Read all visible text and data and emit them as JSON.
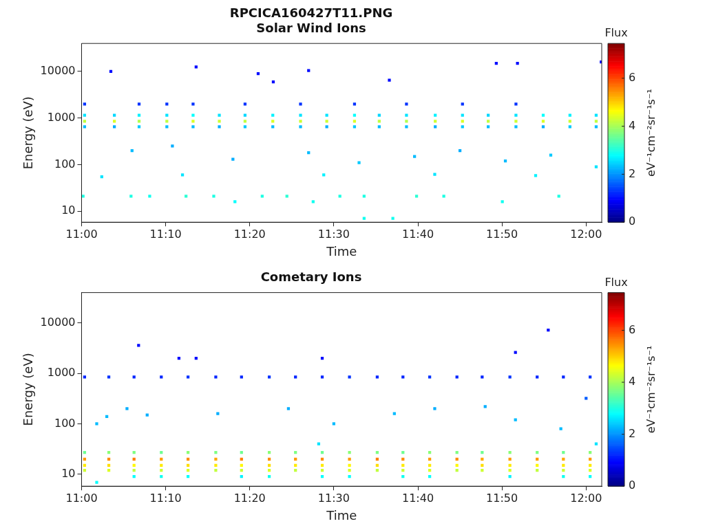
{
  "chart_data": [
    {
      "type": "scatter",
      "title": "RPCICA160427T11.PNG",
      "subtitle": "Solar Wind Ions",
      "xlabel": "Time",
      "ylabel": "Energy (eV)",
      "clabel": "eV⁻¹cm⁻²sr⁻¹s⁻¹",
      "legend_title": "Flux",
      "log": "y",
      "marker": "square",
      "grid": false,
      "legend": false,
      "xlim": [
        11,
        12.031
      ],
      "xticks": [
        {
          "value": 11,
          "label": "11:00"
        },
        {
          "value": 11.1667,
          "label": "11:10"
        },
        {
          "value": 11.3333,
          "label": "11:20"
        },
        {
          "value": 11.5,
          "label": "11:30"
        },
        {
          "value": 11.6667,
          "label": "11:40"
        },
        {
          "value": 11.8333,
          "label": "11:50"
        },
        {
          "value": 12,
          "label": "12:00"
        }
      ],
      "ylim": [
        5.8,
        40000
      ],
      "yticks": [
        10,
        100,
        1000,
        10000
      ],
      "clim": [
        0,
        7.45
      ],
      "cticks": [
        0,
        2,
        4,
        6
      ],
      "x": [
        11.006,
        11.065,
        11.114,
        11.169,
        11.221,
        11.273,
        11.324,
        11.379,
        11.434,
        11.486,
        11.541,
        11.59,
        11.644,
        11.701,
        11.755,
        11.806,
        11.861,
        11.915,
        11.968,
        12.02,
        11.006,
        11.065,
        11.114,
        11.169,
        11.221,
        11.273,
        11.324,
        11.379,
        11.434,
        11.486,
        11.541,
        11.59,
        11.644,
        11.701,
        11.755,
        11.806,
        11.861,
        11.915,
        11.968,
        12.02,
        11.006,
        11.065,
        11.114,
        11.169,
        11.221,
        11.273,
        11.324,
        11.379,
        11.434,
        11.486,
        11.541,
        11.59,
        11.644,
        11.701,
        11.755,
        11.806,
        11.861,
        11.915,
        11.968,
        12.02,
        11.006,
        11.114,
        11.169,
        11.221,
        11.324,
        11.434,
        11.541,
        11.644,
        11.755,
        11.861,
        11.003,
        11.098,
        11.135,
        11.207,
        11.262,
        11.304,
        11.358,
        11.407,
        11.459,
        11.512,
        11.56,
        11.664,
        11.718,
        11.834,
        11.946,
        11.058,
        11.227,
        11.45,
        11.822,
        11.864,
        12.03,
        11.35,
        11.61,
        11.38,
        11.1,
        11.18,
        11.3,
        11.45,
        11.55,
        11.66,
        11.75,
        11.84,
        11.93,
        12.02,
        11.04,
        11.2,
        11.48,
        11.7,
        11.9,
        11.56,
        11.617
      ],
      "values": [
        850,
        850,
        850,
        850,
        850,
        850,
        850,
        850,
        850,
        850,
        850,
        850,
        850,
        850,
        850,
        850,
        850,
        850,
        850,
        850,
        1150,
        1150,
        1150,
        1150,
        1150,
        1150,
        1150,
        1150,
        1150,
        1150,
        1150,
        1150,
        1150,
        1150,
        1150,
        1150,
        1150,
        1150,
        1150,
        1150,
        650,
        650,
        650,
        650,
        650,
        650,
        650,
        650,
        650,
        650,
        650,
        650,
        650,
        650,
        650,
        650,
        650,
        650,
        650,
        650,
        2000,
        2000,
        2000,
        2000,
        2000,
        2000,
        2000,
        2000,
        2000,
        2000,
        21,
        21,
        21,
        21,
        21,
        16,
        21,
        21,
        16,
        21,
        21,
        21,
        21,
        16,
        21,
        10000,
        12500,
        10500,
        15000,
        15000,
        16000,
        9000,
        6500,
        6000,
        200,
        250,
        130,
        180,
        110,
        150,
        200,
        120,
        160,
        90,
        55,
        60,
        60,
        62,
        58,
        7,
        7
      ],
      "cvalues": [
        4.2,
        4.4,
        4.1,
        4.2,
        4.4,
        4.3,
        4.2,
        4.4,
        4.3,
        4.3,
        4.4,
        4.2,
        4.1,
        4.3,
        4.4,
        4.2,
        4.3,
        4.4,
        4.3,
        4.2,
        2.6,
        2.5,
        2.7,
        2.6,
        2.8,
        2.6,
        2.5,
        2.7,
        2.6,
        2.6,
        2.8,
        2.5,
        2.6,
        2.7,
        2.6,
        2.5,
        2.6,
        2.8,
        2.7,
        2.6,
        2.3,
        2.2,
        2.4,
        2.3,
        2.3,
        2.2,
        2.4,
        2.3,
        2.3,
        2.2,
        2.4,
        2.3,
        2.3,
        2.2,
        2.4,
        2.3,
        2.3,
        2.2,
        2.4,
        2.3,
        1.3,
        1.3,
        1.3,
        1.3,
        1.3,
        1.3,
        1.3,
        1.3,
        1.3,
        1.3,
        3.0,
        3.0,
        2.9,
        3.1,
        3.0,
        2.8,
        3.0,
        3.1,
        2.9,
        3.0,
        3.0,
        3.1,
        3.0,
        2.9,
        3.0,
        1.0,
        1.0,
        1.0,
        1.0,
        1.0,
        1.0,
        1.0,
        1.0,
        1.0,
        2.3,
        2.2,
        2.2,
        2.3,
        2.4,
        2.3,
        2.2,
        2.3,
        2.4,
        2.6,
        2.6,
        2.6,
        2.7,
        2.6,
        2.7,
        2.9,
        2.9
      ]
    },
    {
      "type": "scatter",
      "title": "Cometary Ions",
      "xlabel": "Time",
      "ylabel": "Energy (eV)",
      "clabel": "eV⁻¹cm⁻²sr⁻¹s⁻¹",
      "legend_title": "Flux",
      "log": "y",
      "marker": "square",
      "grid": false,
      "legend": false,
      "xlim": [
        11,
        12.031
      ],
      "xticks": [
        {
          "value": 11,
          "label": "11:00"
        },
        {
          "value": 11.1667,
          "label": "11:10"
        },
        {
          "value": 11.3333,
          "label": "11:20"
        },
        {
          "value": 11.5,
          "label": "11:30"
        },
        {
          "value": 11.6667,
          "label": "11:40"
        },
        {
          "value": 11.8333,
          "label": "11:50"
        },
        {
          "value": 12,
          "label": "12:00"
        }
      ],
      "ylim": [
        5.8,
        40000
      ],
      "yticks": [
        10,
        100,
        1000,
        10000
      ],
      "clim": [
        0,
        7.45
      ],
      "cticks": [
        0,
        2,
        4,
        6
      ],
      "x": [
        11.006,
        11.054,
        11.104,
        11.158,
        11.211,
        11.266,
        11.317,
        11.372,
        11.424,
        11.477,
        11.531,
        11.586,
        11.637,
        11.69,
        11.744,
        11.794,
        11.849,
        11.903,
        11.955,
        12.008,
        11.006,
        11.054,
        11.104,
        11.158,
        11.211,
        11.266,
        11.317,
        11.372,
        11.424,
        11.477,
        11.531,
        11.586,
        11.637,
        11.69,
        11.744,
        11.794,
        11.849,
        11.903,
        11.955,
        12.008,
        11.006,
        11.054,
        11.104,
        11.158,
        11.211,
        11.266,
        11.317,
        11.372,
        11.424,
        11.477,
        11.531,
        11.586,
        11.637,
        11.69,
        11.744,
        11.794,
        11.849,
        11.903,
        11.955,
        12.008,
        11.006,
        11.054,
        11.104,
        11.158,
        11.211,
        11.266,
        11.317,
        11.372,
        11.424,
        11.477,
        11.531,
        11.586,
        11.637,
        11.69,
        11.744,
        11.794,
        11.849,
        11.903,
        11.955,
        12.008,
        11.104,
        11.158,
        11.211,
        11.317,
        11.372,
        11.477,
        11.531,
        11.637,
        11.69,
        11.849,
        11.955,
        12.008,
        11.006,
        11.054,
        11.104,
        11.158,
        11.211,
        11.266,
        11.317,
        11.372,
        11.424,
        11.477,
        11.531,
        11.586,
        11.637,
        11.69,
        11.744,
        11.794,
        11.849,
        11.903,
        11.955,
        12.008,
        11.113,
        11.193,
        11.227,
        11.477,
        11.86,
        11.925,
        12.0,
        11.03,
        11.05,
        11.09,
        11.13,
        11.27,
        11.41,
        11.5,
        11.62,
        11.7,
        11.8,
        11.86,
        11.95,
        12.02,
        11.47,
        11.03
      ],
      "values": [
        20,
        20,
        20,
        20,
        20,
        20,
        20,
        20,
        20,
        20,
        20,
        20,
        20,
        20,
        20,
        20,
        20,
        20,
        20,
        20,
        15,
        15,
        15,
        15,
        15,
        15,
        15,
        15,
        15,
        15,
        15,
        15,
        15,
        15,
        15,
        15,
        15,
        15,
        15,
        15,
        27,
        27,
        27,
        27,
        27,
        27,
        27,
        27,
        27,
        27,
        27,
        27,
        27,
        27,
        27,
        27,
        27,
        27,
        27,
        27,
        12,
        12,
        12,
        12,
        12,
        12,
        12,
        12,
        12,
        12,
        12,
        12,
        12,
        12,
        12,
        12,
        12,
        12,
        12,
        12,
        9,
        9,
        9,
        9,
        9,
        9,
        9,
        9,
        9,
        9,
        9,
        9,
        850,
        850,
        850,
        850,
        850,
        850,
        850,
        850,
        850,
        850,
        850,
        850,
        850,
        850,
        850,
        850,
        850,
        850,
        850,
        850,
        3600,
        2000,
        2000,
        2000,
        2600,
        7200,
        320,
        100,
        140,
        200,
        150,
        160,
        200,
        100,
        160,
        200,
        220,
        120,
        80,
        40,
        40,
        6.9
      ],
      "cvalues": [
        5.4,
        5.5,
        5.6,
        5.4,
        5.5,
        5.3,
        5.6,
        5.5,
        5.4,
        5.5,
        5.4,
        5.6,
        5.5,
        5.4,
        5.5,
        5.3,
        5.4,
        5.4,
        5.3,
        5.4,
        4.8,
        4.9,
        4.7,
        4.8,
        4.9,
        4.8,
        4.7,
        4.9,
        4.8,
        4.8,
        4.7,
        4.9,
        4.8,
        4.8,
        4.7,
        4.9,
        4.8,
        4.7,
        4.8,
        4.8,
        3.6,
        3.8,
        3.7,
        3.6,
        3.8,
        3.7,
        3.6,
        3.8,
        3.7,
        3.6,
        3.8,
        3.7,
        3.6,
        3.8,
        3.7,
        3.6,
        3.8,
        3.7,
        3.6,
        3.8,
        4.3,
        4.4,
        4.2,
        4.3,
        4.4,
        4.2,
        4.3,
        4.4,
        4.2,
        4.3,
        4.4,
        4.2,
        4.3,
        4.4,
        4.2,
        4.3,
        4.4,
        4.2,
        4.3,
        4.4,
        2.8,
        2.9,
        2.8,
        2.7,
        2.9,
        2.8,
        2.8,
        2.9,
        2.8,
        2.7,
        2.9,
        2.8,
        1.2,
        1.3,
        1.2,
        1.2,
        1.3,
        1.2,
        1.2,
        1.3,
        1.2,
        1.2,
        1.3,
        1.2,
        1.2,
        1.3,
        1.2,
        1.2,
        1.3,
        1.2,
        1.2,
        1.3,
        1.0,
        1.0,
        1.0,
        1.0,
        1.0,
        1.0,
        1.6,
        2.3,
        2.3,
        2.2,
        2.2,
        2.2,
        2.2,
        2.3,
        2.3,
        2.2,
        2.2,
        2.3,
        2.3,
        2.6,
        2.6,
        2.8
      ]
    }
  ]
}
